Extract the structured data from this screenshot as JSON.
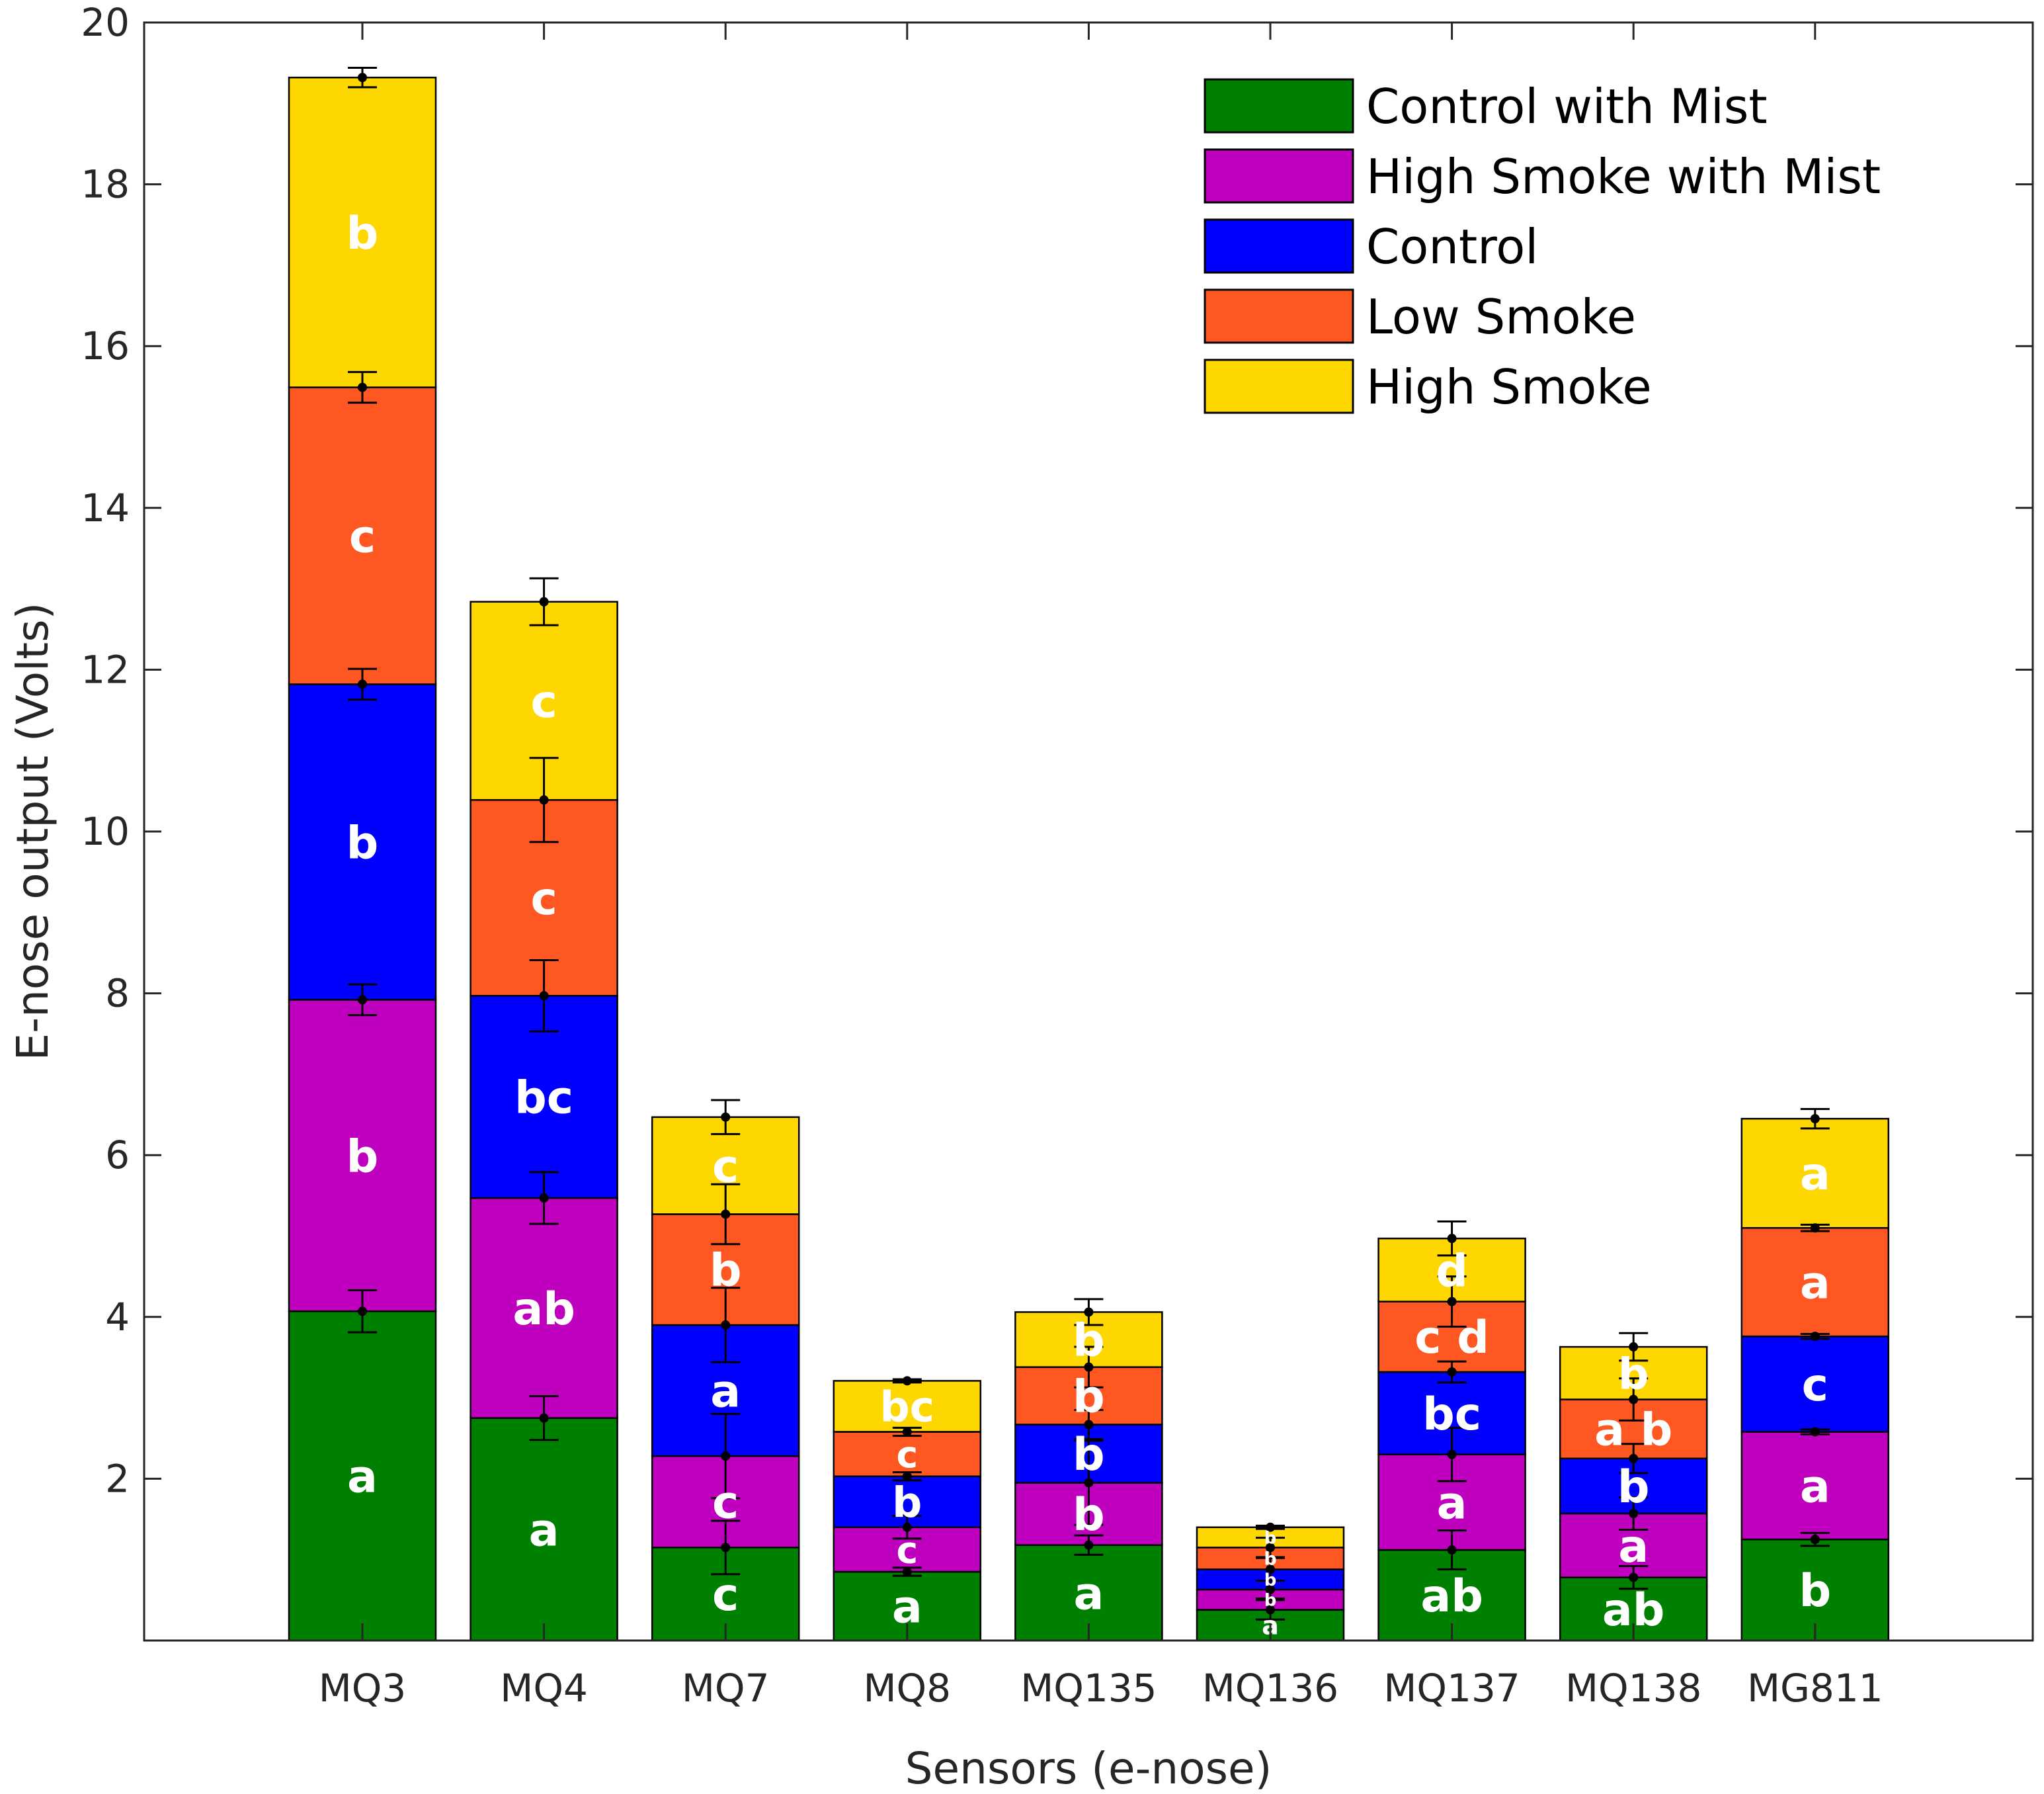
{
  "chart_data": {
    "type": "bar",
    "stacked": true,
    "title": "",
    "xlabel": "Sensors (e-nose)",
    "ylabel": "E-nose output (Volts)",
    "ylim": [
      0,
      20
    ],
    "yticks": [
      "2",
      "4",
      "6",
      "8",
      "10",
      "12",
      "14",
      "16",
      "18",
      "20"
    ],
    "grid": false,
    "legend_position": "top-right",
    "categories": [
      "MQ3",
      "MQ4",
      "MQ7",
      "MQ8",
      "MQ135",
      "MQ136",
      "MQ137",
      "MQ138",
      "MG811"
    ],
    "series": [
      {
        "name": "Control with Mist",
        "color": "#008000",
        "values": [
          4.07,
          2.75,
          1.15,
          0.85,
          1.18,
          0.38,
          1.12,
          0.78,
          1.25
        ],
        "errors": [
          0.26,
          0.27,
          0.33,
          0.05,
          0.12,
          0.12,
          0.24,
          0.14,
          0.08
        ],
        "labels": [
          "a",
          "a",
          "c",
          "a",
          "a",
          "a",
          "ab",
          "ab",
          "b"
        ]
      },
      {
        "name": "High Smoke with Mist",
        "color": "#BF00BF",
        "values": [
          3.85,
          2.72,
          1.13,
          0.55,
          0.77,
          0.25,
          1.18,
          0.79,
          1.33
        ],
        "errors": [
          0.19,
          0.32,
          0.52,
          0.14,
          0.52,
          0.11,
          0.33,
          0.2,
          0.03
        ],
        "labels": [
          "b",
          "ab",
          "c",
          "c",
          "b",
          "b",
          "a",
          "a",
          "a"
        ]
      },
      {
        "name": "Control",
        "color": "#0000FF",
        "values": [
          3.9,
          2.5,
          1.62,
          0.63,
          0.72,
          0.25,
          1.02,
          0.68,
          1.18
        ],
        "errors": [
          0.19,
          0.44,
          0.46,
          0.05,
          0.18,
          0.14,
          0.13,
          0.18,
          0.03
        ],
        "labels": [
          "b",
          "bc",
          "a",
          "b",
          "b",
          "b",
          "bc",
          "b",
          "c"
        ]
      },
      {
        "name": "Low Smoke",
        "color": "#FF5722",
        "values": [
          3.67,
          2.42,
          1.37,
          0.55,
          0.71,
          0.27,
          0.87,
          0.73,
          1.34
        ],
        "errors": [
          0.19,
          0.52,
          0.37,
          0.05,
          0.25,
          0.12,
          0.31,
          0.26,
          0.04
        ],
        "labels": [
          "c",
          "c",
          "b",
          "c",
          "b",
          "b",
          "c d",
          "a b",
          "a"
        ]
      },
      {
        "name": "High Smoke",
        "color": "#FFD700",
        "values": [
          3.83,
          2.45,
          1.2,
          0.63,
          0.68,
          0.25,
          0.78,
          0.65,
          1.35
        ],
        "errors": [
          0.12,
          0.29,
          0.21,
          0.02,
          0.16,
          0.02,
          0.21,
          0.17,
          0.12
        ],
        "labels": [
          "b",
          "c",
          "c",
          "bc",
          "b",
          "b",
          "d",
          "b",
          "a"
        ]
      }
    ]
  }
}
